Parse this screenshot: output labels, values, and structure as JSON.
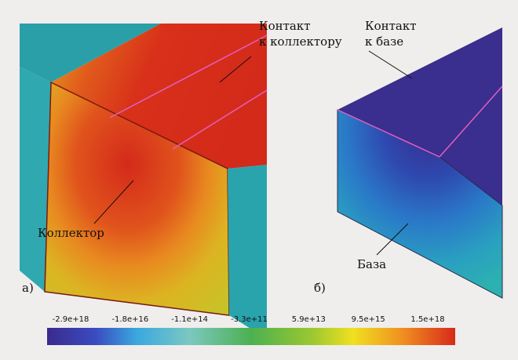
{
  "panel_a": {
    "label": "а)",
    "contact_lines": [
      "Контакт",
      "к коллектору"
    ],
    "region": "Коллектор"
  },
  "panel_b": {
    "label": "б)",
    "contact_lines": [
      "Контакт",
      "к базе"
    ],
    "region": "База"
  },
  "colorbar": {
    "ticks": [
      "-2.9e+18",
      "-1.8e+16",
      "-1.1e+14",
      "-3.3e+11",
      "5.9e+13",
      "9.5e+15",
      "1.5e+18"
    ]
  }
}
